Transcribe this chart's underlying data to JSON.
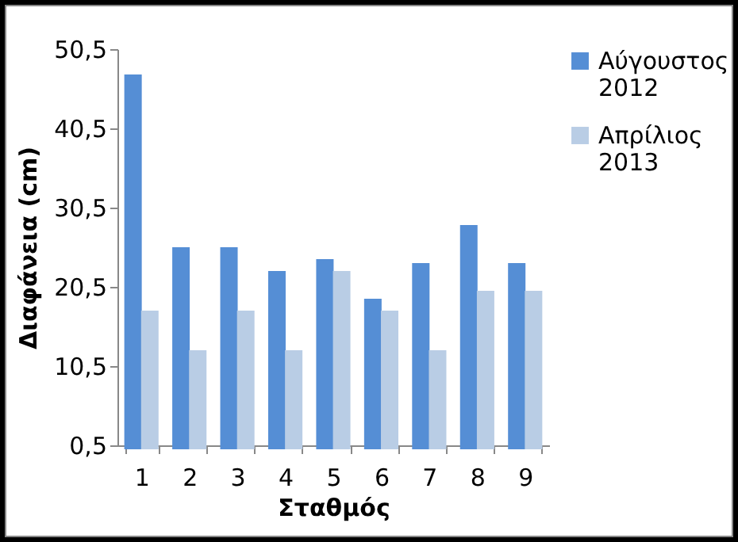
{
  "chart_data": {
    "type": "bar",
    "xlabel": "Σταθμός",
    "ylabel": "Διαφάνεια (cm)",
    "categories": [
      "1",
      "2",
      "3",
      "4",
      "5",
      "6",
      "7",
      "8",
      "9"
    ],
    "series": [
      {
        "name": "Αύγουστος 2012",
        "color": "#558ed5",
        "values": [
          47.3,
          25.5,
          25.5,
          22.5,
          24,
          19,
          23.5,
          28.3,
          23.5
        ]
      },
      {
        "name": "Απρίλιος 2013",
        "color": "#b9cde5",
        "values": [
          17.5,
          12.5,
          17.5,
          12.5,
          22.5,
          17.5,
          12.5,
          20,
          20
        ]
      }
    ],
    "ylim": [
      0.5,
      50.5
    ],
    "yticks": [
      {
        "value": 0.5,
        "label": "0,5"
      },
      {
        "value": 10.5,
        "label": "10,5"
      },
      {
        "value": 20.5,
        "label": "20,5"
      },
      {
        "value": 30.5,
        "label": "30,5"
      },
      {
        "value": 40.5,
        "label": "40,5"
      },
      {
        "value": 50.5,
        "label": "50,5"
      }
    ],
    "grid": false,
    "legend": "right"
  }
}
